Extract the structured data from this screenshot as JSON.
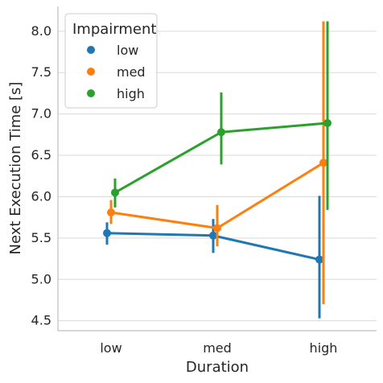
{
  "chart_data": {
    "type": "line",
    "xlabel": "Duration",
    "ylabel": "Next Execution Time [s]",
    "categories": [
      "low",
      "med",
      "high"
    ],
    "ylim": [
      4.38,
      8.3
    ],
    "yticks": [
      4.5,
      5.0,
      5.5,
      6.0,
      6.5,
      7.0,
      7.5,
      8.0
    ],
    "ytick_labels": [
      "4.5",
      "5.0",
      "5.5",
      "6.0",
      "6.5",
      "7.0",
      "7.5",
      "8.0"
    ],
    "grid": "horizontal",
    "legend": {
      "title": "Impairment",
      "placement": "top-left"
    },
    "series": [
      {
        "name": "low",
        "color": "#1f77b4",
        "values": [
          5.56,
          5.53,
          5.24
        ],
        "ci_low": [
          5.42,
          5.32,
          4.53
        ],
        "ci_high": [
          5.69,
          5.73,
          6.01
        ]
      },
      {
        "name": "med",
        "color": "#ff7f0e",
        "values": [
          5.81,
          5.62,
          6.41
        ],
        "ci_low": [
          5.67,
          5.4,
          4.7
        ],
        "ci_high": [
          5.96,
          5.9,
          8.12
        ]
      },
      {
        "name": "high",
        "color": "#2ca02c",
        "values": [
          6.05,
          6.78,
          6.89
        ],
        "ci_low": [
          5.87,
          6.39,
          5.84
        ],
        "ci_high": [
          6.22,
          7.26,
          8.12
        ]
      }
    ]
  }
}
